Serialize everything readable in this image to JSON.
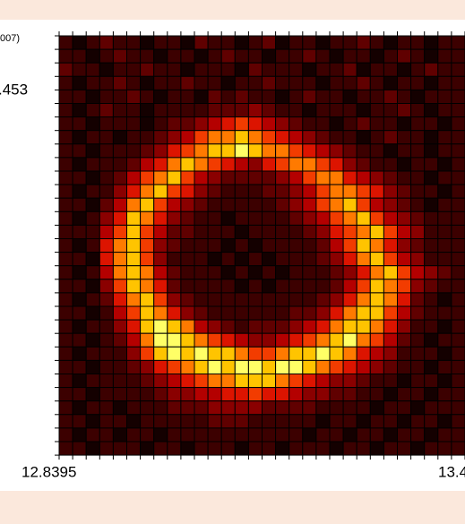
{
  "chart_data": {
    "type": "heatmap",
    "annotations": [
      "007)",
      ".453"
    ],
    "xticks": [
      12.8395,
      13.4
    ],
    "colors": [
      "#140000",
      "#3c0000",
      "#600000",
      "#8a0000",
      "#b40000",
      "#dc1400",
      "#f23c00",
      "#ff7a00",
      "#ffc400",
      "#ffff66"
    ],
    "z": [
      [
        1,
        0,
        1,
        2,
        1,
        1,
        0,
        1,
        1,
        0,
        2,
        1,
        1,
        0,
        1,
        2,
        0,
        1,
        1,
        0,
        1,
        1,
        2,
        1,
        0,
        1,
        1,
        0,
        1,
        1
      ],
      [
        1,
        1,
        0,
        1,
        2,
        1,
        1,
        0,
        1,
        1,
        0,
        1,
        2,
        1,
        1,
        0,
        1,
        1,
        2,
        1,
        0,
        1,
        1,
        0,
        1,
        2,
        1,
        0,
        1,
        1
      ],
      [
        2,
        1,
        1,
        0,
        1,
        1,
        2,
        1,
        1,
        0,
        1,
        1,
        1,
        0,
        2,
        1,
        1,
        1,
        0,
        1,
        1,
        2,
        0,
        1,
        1,
        0,
        1,
        2,
        1,
        1
      ],
      [
        1,
        0,
        1,
        1,
        2,
        1,
        0,
        1,
        1,
        2,
        1,
        1,
        0,
        1,
        1,
        2,
        1,
        1,
        1,
        0,
        1,
        1,
        2,
        1,
        0,
        1,
        1,
        0,
        1,
        1
      ],
      [
        1,
        1,
        0,
        1,
        1,
        2,
        1,
        0,
        1,
        1,
        0,
        2,
        1,
        2,
        1,
        1,
        0,
        1,
        2,
        1,
        1,
        0,
        1,
        1,
        2,
        1,
        0,
        1,
        1,
        1
      ],
      [
        1,
        0,
        1,
        2,
        1,
        1,
        0,
        1,
        1,
        1,
        1,
        2,
        2,
        2,
        3,
        2,
        1,
        1,
        0,
        1,
        1,
        1,
        0,
        1,
        1,
        2,
        1,
        0,
        1,
        1
      ],
      [
        1,
        1,
        0,
        1,
        1,
        1,
        0,
        1,
        2,
        2,
        3,
        4,
        5,
        6,
        5,
        4,
        3,
        2,
        1,
        1,
        0,
        1,
        2,
        1,
        1,
        0,
        1,
        1,
        0,
        1
      ],
      [
        1,
        0,
        1,
        1,
        0,
        1,
        1,
        2,
        3,
        4,
        6,
        7,
        7,
        8,
        7,
        6,
        5,
        4,
        3,
        2,
        1,
        1,
        0,
        1,
        2,
        1,
        1,
        0,
        1,
        1
      ],
      [
        1,
        1,
        0,
        1,
        1,
        1,
        2,
        3,
        5,
        6,
        7,
        8,
        8,
        9,
        8,
        7,
        7,
        6,
        5,
        4,
        3,
        2,
        1,
        1,
        0,
        1,
        1,
        0,
        1,
        1
      ],
      [
        1,
        0,
        1,
        1,
        1,
        2,
        4,
        5,
        7,
        8,
        7,
        6,
        5,
        4,
        3,
        5,
        6,
        7,
        7,
        6,
        5,
        3,
        2,
        1,
        1,
        0,
        1,
        1,
        0,
        1
      ],
      [
        1,
        1,
        0,
        1,
        2,
        4,
        6,
        7,
        8,
        6,
        4,
        3,
        2,
        2,
        2,
        2,
        3,
        4,
        6,
        7,
        7,
        5,
        4,
        3,
        2,
        1,
        1,
        0,
        1,
        1
      ],
      [
        1,
        0,
        1,
        1,
        3,
        5,
        7,
        8,
        6,
        5,
        3,
        2,
        1,
        1,
        1,
        2,
        2,
        3,
        4,
        6,
        7,
        7,
        6,
        5,
        3,
        2,
        1,
        1,
        0,
        1
      ],
      [
        1,
        1,
        0,
        2,
        4,
        7,
        8,
        6,
        4,
        3,
        2,
        1,
        1,
        1,
        1,
        1,
        2,
        3,
        4,
        6,
        7,
        8,
        6,
        4,
        3,
        2,
        1,
        0,
        1,
        1
      ],
      [
        1,
        0,
        1,
        3,
        5,
        8,
        7,
        5,
        3,
        2,
        1,
        1,
        0,
        1,
        1,
        1,
        1,
        2,
        3,
        4,
        6,
        7,
        8,
        6,
        4,
        3,
        2,
        1,
        1,
        1
      ],
      [
        1,
        1,
        1,
        4,
        6,
        8,
        6,
        4,
        2,
        2,
        1,
        1,
        1,
        0,
        1,
        1,
        1,
        1,
        2,
        3,
        5,
        6,
        7,
        8,
        6,
        4,
        3,
        1,
        1,
        1
      ],
      [
        1,
        0,
        1,
        5,
        7,
        8,
        6,
        3,
        2,
        1,
        1,
        1,
        0,
        1,
        0,
        1,
        1,
        1,
        1,
        2,
        4,
        6,
        8,
        7,
        5,
        3,
        2,
        1,
        1,
        1
      ],
      [
        1,
        1,
        0,
        5,
        7,
        8,
        6,
        3,
        1,
        1,
        1,
        0,
        1,
        0,
        1,
        0,
        1,
        1,
        1,
        2,
        3,
        5,
        7,
        8,
        6,
        4,
        3,
        1,
        1,
        1
      ],
      [
        1,
        0,
        1,
        4,
        7,
        8,
        7,
        4,
        2,
        1,
        1,
        1,
        0,
        1,
        0,
        1,
        0,
        1,
        1,
        1,
        2,
        3,
        5,
        7,
        8,
        6,
        4,
        3,
        2,
        1
      ],
      [
        1,
        1,
        0,
        3,
        6,
        8,
        7,
        5,
        2,
        1,
        1,
        1,
        1,
        0,
        1,
        0,
        1,
        1,
        1,
        1,
        2,
        4,
        6,
        8,
        7,
        6,
        3,
        2,
        1,
        1
      ],
      [
        1,
        0,
        1,
        2,
        5,
        7,
        8,
        6,
        3,
        2,
        1,
        1,
        1,
        1,
        1,
        1,
        1,
        1,
        1,
        2,
        3,
        5,
        7,
        8,
        7,
        5,
        2,
        1,
        0,
        1
      ],
      [
        1,
        1,
        0,
        1,
        4,
        6,
        8,
        7,
        5,
        3,
        2,
        1,
        1,
        1,
        1,
        1,
        1,
        2,
        2,
        3,
        5,
        7,
        8,
        8,
        6,
        4,
        2,
        1,
        1,
        1
      ],
      [
        1,
        0,
        1,
        1,
        3,
        5,
        8,
        9,
        8,
        7,
        4,
        3,
        2,
        1,
        2,
        2,
        2,
        3,
        4,
        5,
        7,
        8,
        8,
        7,
        5,
        3,
        1,
        1,
        0,
        1
      ],
      [
        1,
        1,
        0,
        1,
        2,
        4,
        7,
        9,
        9,
        8,
        7,
        6,
        5,
        4,
        3,
        3,
        4,
        5,
        6,
        7,
        8,
        9,
        7,
        6,
        4,
        2,
        1,
        0,
        1,
        1
      ],
      [
        1,
        0,
        1,
        1,
        1,
        3,
        6,
        8,
        9,
        8,
        9,
        8,
        8,
        7,
        6,
        6,
        7,
        8,
        8,
        9,
        8,
        7,
        5,
        4,
        3,
        1,
        1,
        1,
        0,
        1
      ],
      [
        1,
        1,
        0,
        1,
        1,
        2,
        3,
        5,
        6,
        7,
        8,
        9,
        8,
        9,
        9,
        8,
        9,
        9,
        8,
        7,
        6,
        5,
        4,
        3,
        2,
        1,
        1,
        0,
        1,
        1
      ],
      [
        1,
        0,
        1,
        1,
        1,
        1,
        2,
        3,
        4,
        5,
        6,
        7,
        7,
        8,
        8,
        8,
        7,
        6,
        5,
        4,
        3,
        3,
        2,
        1,
        1,
        0,
        1,
        1,
        0,
        1
      ],
      [
        1,
        1,
        0,
        1,
        1,
        1,
        1,
        2,
        3,
        3,
        4,
        4,
        5,
        5,
        6,
        5,
        5,
        4,
        3,
        3,
        2,
        2,
        1,
        1,
        0,
        1,
        1,
        0,
        1,
        1
      ],
      [
        1,
        0,
        1,
        1,
        0,
        1,
        1,
        1,
        2,
        2,
        2,
        3,
        3,
        3,
        3,
        2,
        2,
        2,
        2,
        1,
        1,
        1,
        1,
        0,
        1,
        1,
        0,
        1,
        1,
        1
      ],
      [
        1,
        1,
        0,
        1,
        1,
        0,
        1,
        1,
        1,
        1,
        1,
        2,
        2,
        2,
        1,
        1,
        1,
        1,
        1,
        0,
        1,
        1,
        0,
        1,
        1,
        0,
        1,
        1,
        0,
        1
      ],
      [
        1,
        0,
        1,
        1,
        0,
        1,
        1,
        0,
        1,
        1,
        1,
        1,
        1,
        1,
        1,
        1,
        1,
        1,
        0,
        1,
        1,
        0,
        1,
        1,
        0,
        1,
        1,
        0,
        1,
        1
      ],
      [
        1,
        1,
        0,
        1,
        1,
        1,
        0,
        1,
        1,
        0,
        1,
        1,
        1,
        0,
        1,
        1,
        0,
        1,
        1,
        1,
        0,
        1,
        1,
        0,
        1,
        1,
        0,
        1,
        1,
        1
      ]
    ]
  }
}
